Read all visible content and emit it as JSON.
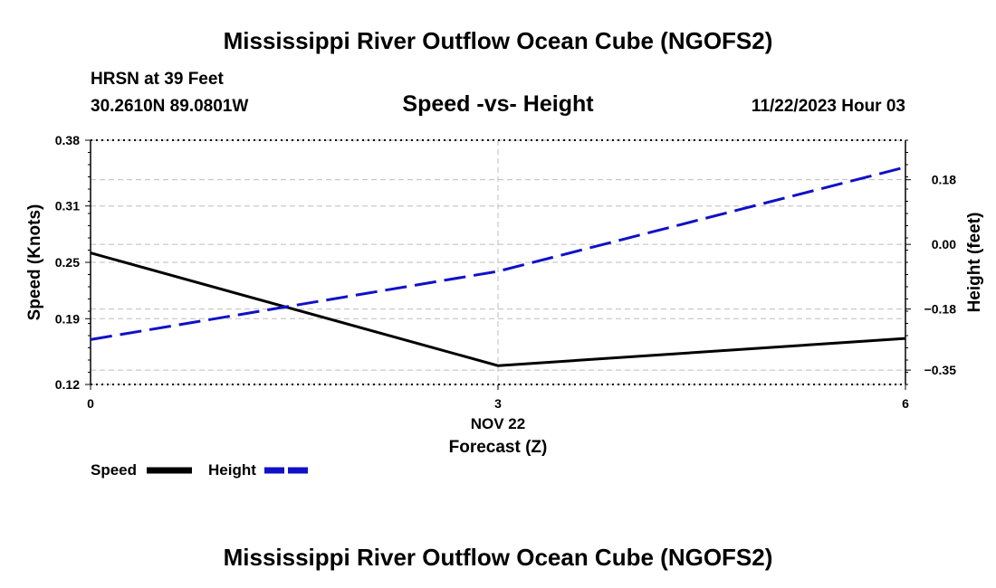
{
  "page_title": "Mississippi River Outflow Ocean Cube (NGOFS2)",
  "station": {
    "name_line": "HRSN at 39 Feet",
    "coords": "30.2610N  89.0801W"
  },
  "datetime": "11/22/2023 Hour 03",
  "footer_title": "Mississippi River Outflow Ocean Cube (NGOFS2)",
  "chart_data": {
    "type": "line",
    "title": "Speed -vs- Height",
    "xlabel": "Forecast (Z)",
    "x_date_label": "NOV 22",
    "ylabel": "Speed (Knots)",
    "ylabel_right": "Height (feet)",
    "xlim": [
      0,
      6
    ],
    "ylim": [
      0.12,
      0.38
    ],
    "ylim_right": [
      -0.39,
      0.29
    ],
    "x_ticks": [
      "0",
      "3",
      "6"
    ],
    "y_ticks": [
      "0.38",
      "0.31",
      "0.25",
      "0.19",
      "0.12"
    ],
    "y_ticks_right": [
      "0.18",
      "0.00",
      "−0.18",
      "−0.35"
    ],
    "series": [
      {
        "name": "Speed",
        "axis": "left",
        "color": "#000000",
        "dash": "solid",
        "x": [
          0,
          3,
          6
        ],
        "values": [
          0.26,
          0.14,
          0.169
        ]
      },
      {
        "name": "Height",
        "axis": "right",
        "color": "#1010c8",
        "dash": "dashed",
        "x": [
          0,
          3,
          6
        ],
        "values": [
          -0.265,
          -0.075,
          0.215
        ]
      }
    ],
    "legend": [
      {
        "label": "Speed",
        "color": "#000000"
      },
      {
        "label": "Height",
        "color": "#1010c8"
      }
    ]
  }
}
